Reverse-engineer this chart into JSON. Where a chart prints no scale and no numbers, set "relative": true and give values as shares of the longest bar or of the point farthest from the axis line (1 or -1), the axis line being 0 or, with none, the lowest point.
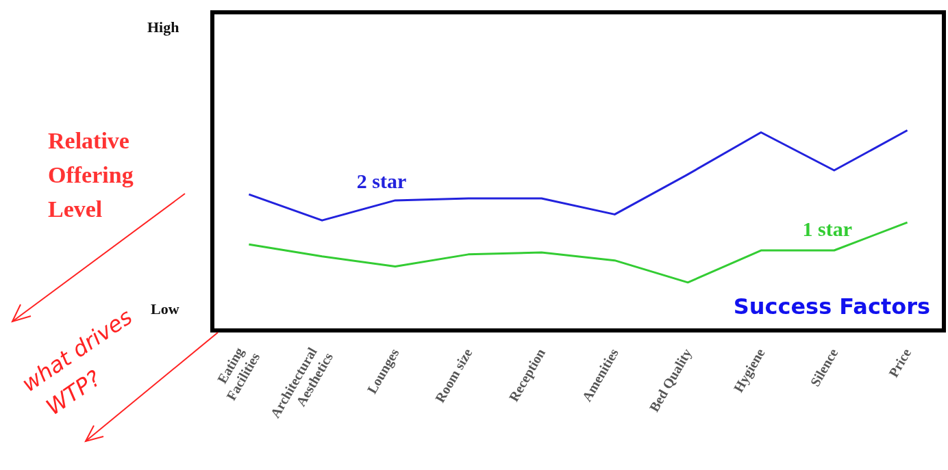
{
  "chart_data": {
    "type": "line",
    "relative": true,
    "ylabel": "Relative Offering Level",
    "xlabel": "Success Factors",
    "categories": [
      "Eating Facilities",
      "Architectural Aesthetics",
      "Lounges",
      "Room size",
      "Reception",
      "Amenities",
      "Bed Quality",
      "Hygiene",
      "Silence",
      "Price"
    ],
    "series": [
      {
        "name": "2 star",
        "color": "#2222dd",
        "values": [
          0.68,
          0.55,
          0.65,
          0.66,
          0.66,
          0.58,
          0.78,
          0.99,
          0.8,
          1
        ]
      },
      {
        "name": "1 star",
        "color": "#33cc33",
        "values": [
          0.43,
          0.37,
          0.32,
          0.38,
          0.39,
          0.35,
          0.24,
          0.4,
          0.4,
          0.54
        ]
      }
    ],
    "annotations": [
      "High",
      "Low",
      "what drives WTP?"
    ],
    "grid": false,
    "legend": false,
    "marker": "none",
    "line_style": "solid"
  }
}
